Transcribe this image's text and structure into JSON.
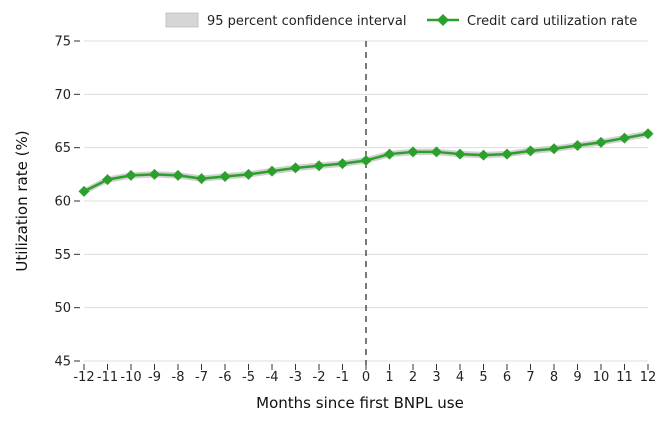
{
  "chart_data": {
    "type": "line",
    "title": "",
    "xlabel": "Months since first BNPL use",
    "ylabel": "Utilization rate (%)",
    "xlim": [
      -12,
      12
    ],
    "ylim": [
      45,
      75
    ],
    "x": [
      -12,
      -11,
      -10,
      -9,
      -8,
      -7,
      -6,
      -5,
      -4,
      -3,
      -2,
      -1,
      0,
      1,
      2,
      3,
      4,
      5,
      6,
      7,
      8,
      9,
      10,
      11,
      12
    ],
    "x_tick_labels": [
      "-12",
      "-11",
      "-10",
      "-9",
      "-8",
      "-7",
      "-6",
      "-5",
      "-4",
      "-3",
      "-2",
      "-1",
      "0",
      "1",
      "2",
      "3",
      "4",
      "5",
      "6",
      "7",
      "8",
      "9",
      "10",
      "11",
      "12"
    ],
    "y_ticks": [
      45,
      50,
      55,
      60,
      65,
      70,
      75
    ],
    "y_tick_labels": [
      "45",
      "50",
      "55",
      "60",
      "65",
      "70",
      "75"
    ],
    "grid": "horizontal",
    "legend_position": "top-right",
    "reference_line": {
      "x": 0,
      "style": "dashed"
    },
    "series": [
      {
        "name": "Credit card utilization rate",
        "color": "#2ca02c",
        "marker": "diamond",
        "values": [
          60.9,
          62.0,
          62.4,
          62.5,
          62.4,
          62.1,
          62.3,
          62.5,
          62.8,
          63.1,
          63.3,
          63.5,
          63.8,
          64.4,
          64.6,
          64.6,
          64.4,
          64.3,
          64.4,
          64.7,
          64.9,
          65.2,
          65.5,
          65.9,
          66.3
        ]
      }
    ],
    "confidence_band": {
      "name": "95 percent confidence interval",
      "color": "#c8c8c8",
      "half_width": 0.3
    }
  }
}
